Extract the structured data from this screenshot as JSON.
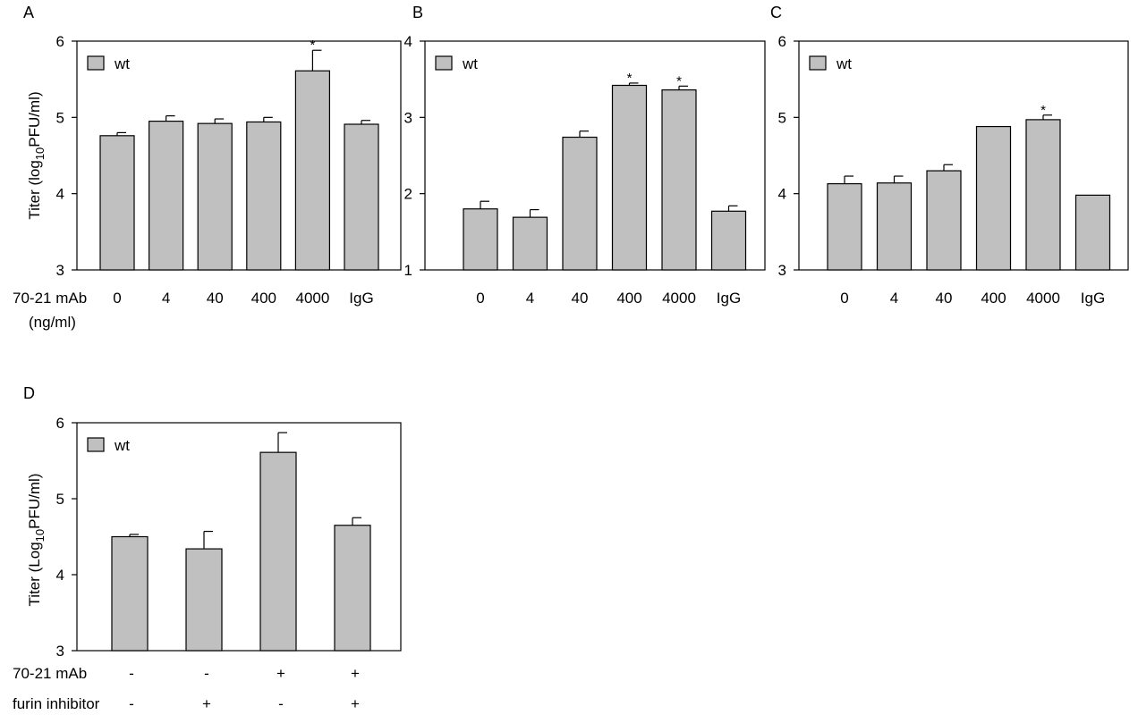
{
  "colors": {
    "bar": "#c0c0c0",
    "stroke": "#000000"
  },
  "chart_data": [
    {
      "panel": "A",
      "type": "bar",
      "ylabel_prefix": "Titer (log",
      "ylabel_sub": "10",
      "ylabel_suffix": "PFU/ml)",
      "ylim": [
        3,
        6
      ],
      "yticks": [
        "3",
        "4",
        "5",
        "6"
      ],
      "categories": [
        "0",
        "4",
        "40",
        "400",
        "4000",
        "IgG"
      ],
      "row_label": "70-21 mAb",
      "row_label_2": "(ng/ml)",
      "legend": "wt",
      "legend_position": "top-left",
      "series": [
        {
          "name": "wt",
          "values": [
            4.76,
            4.95,
            4.92,
            4.94,
            5.61,
            4.91
          ],
          "errors": [
            0.04,
            0.07,
            0.06,
            0.06,
            0.27,
            0.05
          ]
        }
      ],
      "significance": [
        "",
        "",
        "",
        "",
        "*",
        ""
      ]
    },
    {
      "panel": "B",
      "type": "bar",
      "ylim": [
        1,
        4
      ],
      "yticks": [
        "1",
        "2",
        "3",
        "4"
      ],
      "categories": [
        "0",
        "4",
        "40",
        "400",
        "4000",
        "IgG"
      ],
      "legend": "wt",
      "legend_position": "top-left",
      "series": [
        {
          "name": "wt",
          "values": [
            1.8,
            1.69,
            2.74,
            3.42,
            3.36,
            1.77
          ],
          "errors": [
            0.1,
            0.1,
            0.08,
            0.03,
            0.05,
            0.07
          ]
        }
      ],
      "significance": [
        "",
        "",
        "",
        "*",
        "*",
        ""
      ]
    },
    {
      "panel": "C",
      "type": "bar",
      "ylim": [
        3,
        6
      ],
      "yticks": [
        "3",
        "4",
        "5",
        "6"
      ],
      "categories": [
        "0",
        "4",
        "40",
        "400",
        "4000",
        "IgG"
      ],
      "legend": "wt",
      "legend_position": "top-left",
      "series": [
        {
          "name": "wt",
          "values": [
            4.13,
            4.14,
            4.3,
            4.88,
            4.97,
            3.98
          ],
          "errors": [
            0.1,
            0.09,
            0.08,
            0,
            0.06,
            0
          ]
        }
      ],
      "significance": [
        "",
        "",
        "",
        "",
        "*",
        ""
      ]
    },
    {
      "panel": "D",
      "type": "bar",
      "ylabel_prefix": "Titer (Log",
      "ylabel_sub": "10",
      "ylabel_suffix": "PFU/ml)",
      "ylim": [
        3,
        6
      ],
      "yticks": [
        "3",
        "4",
        "5",
        "6"
      ],
      "row_label": "70-21 mAb",
      "row_label_b": "furin inhibitor",
      "row_values": [
        "-",
        "-",
        "+",
        "+"
      ],
      "row_values_b": [
        "-",
        "+",
        "-",
        "+"
      ],
      "legend": "wt",
      "legend_position": "top-left",
      "series": [
        {
          "name": "wt",
          "values": [
            4.5,
            4.34,
            5.61,
            4.65
          ],
          "errors": [
            0.03,
            0.23,
            0.26,
            0.1
          ]
        }
      ],
      "significance": [
        "",
        "",
        "",
        ""
      ]
    }
  ]
}
